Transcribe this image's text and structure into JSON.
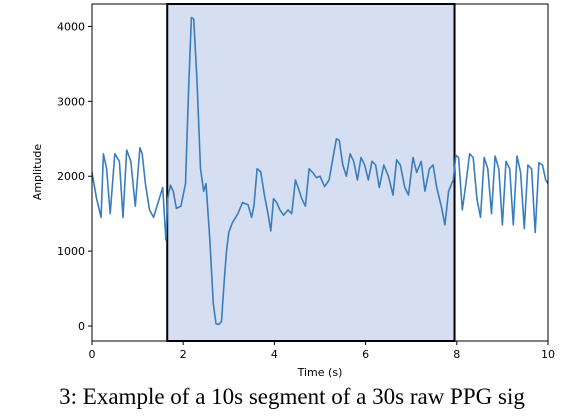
{
  "caption": "3: Example of a 10s segment of a 30s raw PPG sig",
  "chart_data": {
    "type": "line",
    "title": "",
    "xlabel": "Time (s)",
    "ylabel": "Amplitude",
    "xlim": [
      0,
      10
    ],
    "ylim": [
      -200,
      4300
    ],
    "x_ticks": [
      0,
      2,
      4,
      6,
      8,
      10
    ],
    "y_ticks": [
      0,
      1000,
      2000,
      3000,
      4000
    ],
    "grid": false,
    "line_color": "#3a7dbf",
    "highlight_color": "#d6dff2",
    "highlight_border_color": "#000000",
    "highlight_region": [
      1.65,
      7.95
    ],
    "series": [
      {
        "x": [
          0.0,
          0.1,
          0.2,
          0.25,
          0.32,
          0.4,
          0.5,
          0.6,
          0.68,
          0.76,
          0.85,
          0.95,
          1.05,
          1.1,
          1.17,
          1.26,
          1.35,
          1.45,
          1.55,
          1.62,
          1.66,
          1.72,
          1.78,
          1.85,
          1.95,
          2.05,
          2.12,
          2.18,
          2.23,
          2.3,
          2.38,
          2.45,
          2.5,
          2.58,
          2.66,
          2.72,
          2.78,
          2.84,
          2.9,
          2.95,
          3.0,
          3.08,
          3.2,
          3.3,
          3.42,
          3.5,
          3.55,
          3.62,
          3.7,
          3.78,
          3.86,
          3.92,
          3.98,
          4.05,
          4.12,
          4.2,
          4.3,
          4.38,
          4.46,
          4.52,
          4.6,
          4.68,
          4.76,
          4.84,
          4.92,
          5.0,
          5.1,
          5.2,
          5.3,
          5.36,
          5.42,
          5.5,
          5.58,
          5.66,
          5.74,
          5.82,
          5.9,
          5.98,
          6.06,
          6.14,
          6.22,
          6.3,
          6.4,
          6.5,
          6.6,
          6.68,
          6.76,
          6.86,
          6.94,
          7.04,
          7.12,
          7.22,
          7.3,
          7.4,
          7.48,
          7.56,
          7.66,
          7.74,
          7.82,
          7.92,
          7.98,
          8.04,
          8.12,
          8.2,
          8.28,
          8.36,
          8.44,
          8.52,
          8.6,
          8.68,
          8.76,
          8.84,
          8.92,
          9.0,
          9.08,
          9.16,
          9.24,
          9.32,
          9.4,
          9.48,
          9.56,
          9.64,
          9.72,
          9.8,
          9.88,
          9.95,
          10.0
        ],
        "y": [
          2050,
          1700,
          1450,
          2300,
          2100,
          1500,
          2300,
          2200,
          1450,
          2350,
          2200,
          1600,
          2380,
          2300,
          1900,
          1550,
          1450,
          1650,
          1850,
          1150,
          1700,
          1880,
          1800,
          1570,
          1600,
          1900,
          3200,
          4120,
          4100,
          3300,
          2100,
          1800,
          1900,
          1200,
          300,
          30,
          20,
          60,
          600,
          1000,
          1250,
          1380,
          1500,
          1650,
          1620,
          1450,
          1600,
          2100,
          2060,
          1750,
          1500,
          1270,
          1700,
          1650,
          1550,
          1480,
          1550,
          1500,
          1950,
          1850,
          1700,
          1600,
          2100,
          2050,
          1980,
          2000,
          1860,
          1950,
          2300,
          2500,
          2480,
          2150,
          2000,
          2300,
          2200,
          1950,
          2250,
          2150,
          1950,
          2200,
          2150,
          1850,
          2150,
          2000,
          1750,
          2220,
          2150,
          1850,
          1750,
          2250,
          2050,
          2200,
          1800,
          2100,
          2150,
          1850,
          1600,
          1350,
          1800,
          1950,
          2280,
          2250,
          1550,
          1900,
          2300,
          2250,
          1700,
          1450,
          2250,
          2100,
          1500,
          2270,
          2100,
          1350,
          2200,
          2100,
          1350,
          2270,
          2050,
          1300,
          2150,
          2100,
          1250,
          2180,
          2150,
          1950,
          1900
        ]
      }
    ]
  }
}
